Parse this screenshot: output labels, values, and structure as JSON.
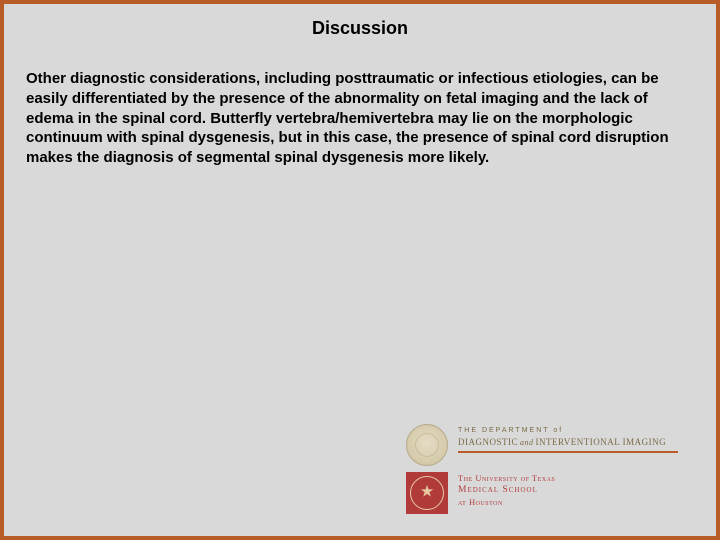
{
  "slide": {
    "title": "Discussion",
    "body": "Other diagnostic considerations, including posttraumatic or infectious etiologies, can be easily differentiated by the presence of the abnormality on fetal imaging and the lack of edema in the spinal cord.  Butterfly vertebra/hemivertebra may lie on the morphologic continuum with spinal dysgenesis, but in this case, the presence of spinal cord disruption makes the diagnosis of segmental spinal dysgenesis more likely.",
    "border_color": "#b85c28",
    "background_color": "#d9d9d9",
    "title_fontsize": 18,
    "body_fontsize": 15
  },
  "logo": {
    "dept_small": "THE DEPARTMENT of",
    "dept_main_a": "DIAGNOSTIC",
    "dept_amp": "and",
    "dept_main_b": "INTERVENTIONAL IMAGING",
    "ut_line1": "The University of Texas",
    "ut_line2": "Medical School",
    "ut_line3": "at Houston",
    "accent_color": "#b85c28",
    "seal_red": "#b13b3b",
    "seal_tan": "#e6dcc5"
  }
}
